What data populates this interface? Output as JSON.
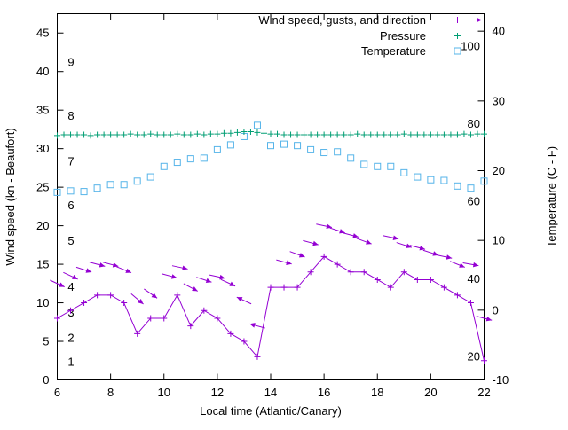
{
  "chart_data": {
    "type": "line",
    "title": "",
    "xlabel": "Local time (Atlantic/Canary)",
    "ylabel_left": "Wind speed (kn - Beaufort)",
    "ylabel_right": "Temperature (C - F)",
    "x_range": [
      6,
      22
    ],
    "x_ticks": [
      6,
      8,
      10,
      12,
      14,
      16,
      18,
      20,
      22
    ],
    "y_left": {
      "range": [
        0,
        47.5
      ],
      "ticks": [
        0,
        5,
        10,
        15,
        20,
        25,
        30,
        35,
        40,
        45
      ]
    },
    "y_right": {
      "range": [
        -10,
        42.5
      ],
      "ticks": [
        -10,
        0,
        10,
        20,
        30,
        40
      ]
    },
    "grid": false,
    "legend_position": "top-right",
    "beaufort_labels": [
      {
        "label": "1",
        "kn": 2.3
      },
      {
        "label": "2",
        "kn": 5.4
      },
      {
        "label": "3",
        "kn": 8.7
      },
      {
        "label": "4",
        "kn": 12.0
      },
      {
        "label": "5",
        "kn": 18.0
      },
      {
        "label": "6",
        "kn": 22.6
      },
      {
        "label": "7",
        "kn": 28.3
      },
      {
        "label": "8",
        "kn": 34.2
      },
      {
        "label": "9",
        "kn": 41.2
      }
    ],
    "fahrenheit_labels": [
      20,
      40,
      60,
      80,
      100
    ],
    "series": {
      "wind": {
        "name": "Wind speed, gusts, and direction",
        "color": "#9400d3",
        "unit": "kn",
        "x_start": 6,
        "x_step": 0.5,
        "values": [
          8,
          9,
          10,
          11,
          11,
          10,
          6,
          8,
          8,
          11,
          7,
          9,
          8,
          6,
          5,
          3,
          12,
          12,
          12,
          14,
          16,
          15,
          14,
          14,
          13,
          12,
          14,
          13,
          13,
          12,
          11,
          10,
          2.5
        ]
      },
      "arrows": {
        "name": "Gusts and direction",
        "color": "#9400d3",
        "points": [
          {
            "x": 6.0,
            "kn": 12.5,
            "dir": 25
          },
          {
            "x": 6.5,
            "kn": 13.5,
            "dir": 25
          },
          {
            "x": 7.0,
            "kn": 14.3,
            "dir": 18
          },
          {
            "x": 7.5,
            "kn": 15.0,
            "dir": 15
          },
          {
            "x": 8.0,
            "kn": 15.0,
            "dir": 15
          },
          {
            "x": 8.5,
            "kn": 14.3,
            "dir": 22
          },
          {
            "x": 9.0,
            "kn": 10.5,
            "dir": 40
          },
          {
            "x": 9.5,
            "kn": 11.2,
            "dir": 35
          },
          {
            "x": 10.2,
            "kn": 13.5,
            "dir": 15
          },
          {
            "x": 10.6,
            "kn": 14.6,
            "dir": 12
          },
          {
            "x": 11.0,
            "kn": 12.0,
            "dir": 28
          },
          {
            "x": 11.5,
            "kn": 13.0,
            "dir": 18
          },
          {
            "x": 12.0,
            "kn": 13.4,
            "dir": 12
          },
          {
            "x": 12.4,
            "kn": 12.6,
            "dir": 25
          },
          {
            "x": 13.0,
            "kn": 10.3,
            "dir": 205
          },
          {
            "x": 13.5,
            "kn": 7.0,
            "dir": 195
          },
          {
            "x": 14.5,
            "kn": 15.3,
            "dir": 15
          },
          {
            "x": 15.0,
            "kn": 16.3,
            "dir": 20
          },
          {
            "x": 15.5,
            "kn": 17.8,
            "dir": 15
          },
          {
            "x": 16.0,
            "kn": 20.0,
            "dir": 12
          },
          {
            "x": 16.5,
            "kn": 19.4,
            "dir": 18
          },
          {
            "x": 17.0,
            "kn": 18.8,
            "dir": 15
          },
          {
            "x": 17.5,
            "kn": 18.0,
            "dir": 20
          },
          {
            "x": 18.5,
            "kn": 18.5,
            "dir": 12
          },
          {
            "x": 19.0,
            "kn": 17.5,
            "dir": 18
          },
          {
            "x": 19.5,
            "kn": 17.2,
            "dir": 15
          },
          {
            "x": 20.0,
            "kn": 16.5,
            "dir": 18
          },
          {
            "x": 20.5,
            "kn": 16.0,
            "dir": 12
          },
          {
            "x": 21.0,
            "kn": 15.0,
            "dir": 22
          },
          {
            "x": 21.5,
            "kn": 15.0,
            "dir": 10
          },
          {
            "x": 22.0,
            "kn": 8.0,
            "dir": 15
          }
        ]
      },
      "pressure": {
        "name": "Pressure",
        "color": "#009e73",
        "x_start": 6,
        "x_step": 0.25,
        "values": [
          31.7,
          31.8,
          31.8,
          31.8,
          31.8,
          31.7,
          31.8,
          31.8,
          31.8,
          31.8,
          31.8,
          31.9,
          31.8,
          31.8,
          31.9,
          31.8,
          31.8,
          31.8,
          31.9,
          31.8,
          31.8,
          31.9,
          31.8,
          31.9,
          31.9,
          32.0,
          32.0,
          32.1,
          32.2,
          32.2,
          32.1,
          32.0,
          31.9,
          31.9,
          31.8,
          31.8,
          31.8,
          31.8,
          31.8,
          31.8,
          31.8,
          31.8,
          31.8,
          31.8,
          31.8,
          31.9,
          31.8,
          31.8,
          31.8,
          31.8,
          31.8,
          31.8,
          31.9,
          31.8,
          31.8,
          31.8,
          31.8,
          31.8,
          31.8,
          31.8,
          31.8,
          31.9,
          31.8,
          31.9,
          31.9
        ]
      },
      "temperature": {
        "name": "Temperature",
        "color": "#56b4e9",
        "unit": "C",
        "x_start": 6,
        "x_step": 0.5,
        "values_c": [
          16.9,
          17.1,
          17.0,
          17.5,
          18.0,
          18.0,
          18.5,
          19.1,
          20.6,
          21.2,
          21.7,
          21.8,
          23.0,
          23.7,
          24.9,
          26.5,
          23.6,
          23.8,
          23.6,
          23.0,
          22.6,
          22.7,
          21.8,
          20.9,
          20.6,
          20.6,
          19.7,
          19.1,
          18.7,
          18.6,
          17.8,
          17.5,
          18.5
        ]
      }
    },
    "colors": {
      "axis": "#000000",
      "background": "#ffffff"
    }
  }
}
